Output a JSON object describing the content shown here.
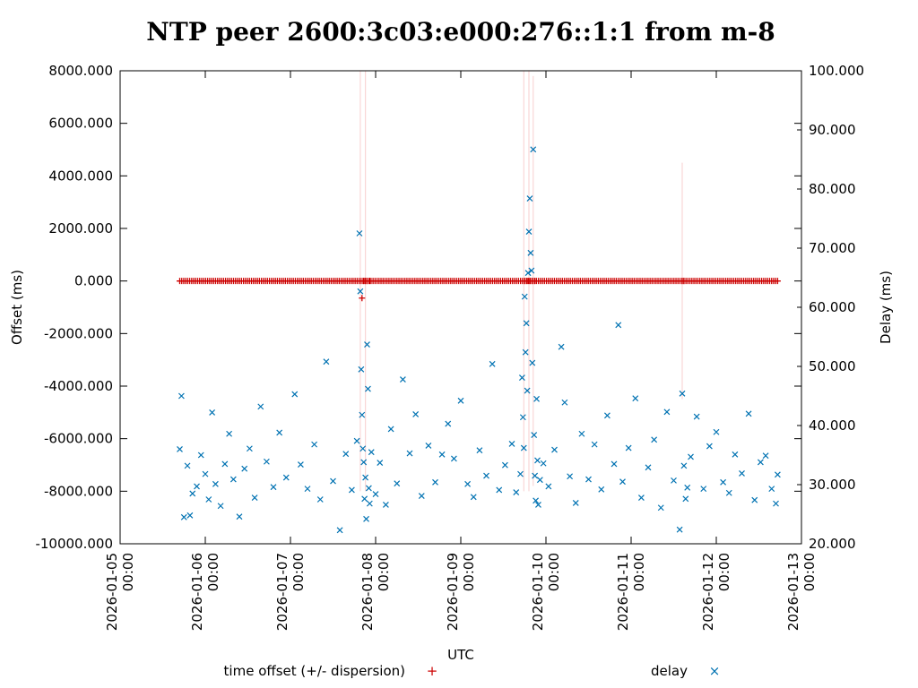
{
  "chart_data": {
    "type": "scatter",
    "title": "NTP peer 2600:3c03:e000:276::1:1 from m-8",
    "xlabel": "UTC",
    "ylabel": "Offset (ms)",
    "y2label": "Delay (ms)",
    "xlim": [
      "2026-01-05 00:00",
      "2026-01-13 00:00"
    ],
    "ylim": [
      -10000,
      8000
    ],
    "y2lim": [
      20,
      100
    ],
    "grid": false,
    "legend_position": "bottom",
    "x_ticks": [
      {
        "date": "2026-01-05",
        "time": "00:00",
        "day": 0
      },
      {
        "date": "2026-01-06",
        "time": "00:00",
        "day": 1
      },
      {
        "date": "2026-01-07",
        "time": "00:00",
        "day": 2
      },
      {
        "date": "2026-01-08",
        "time": "00:00",
        "day": 3
      },
      {
        "date": "2026-01-09",
        "time": "00:00",
        "day": 4
      },
      {
        "date": "2026-01-10",
        "time": "00:00",
        "day": 5
      },
      {
        "date": "2026-01-11",
        "time": "00:00",
        "day": 6
      },
      {
        "date": "2026-01-12",
        "time": "00:00",
        "day": 7
      },
      {
        "date": "2026-01-13",
        "time": "00:00",
        "day": 8
      }
    ],
    "y_ticks": [
      {
        "value": 8000,
        "label": "8000.000"
      },
      {
        "value": 6000,
        "label": "6000.000"
      },
      {
        "value": 4000,
        "label": "4000.000"
      },
      {
        "value": 2000,
        "label": "2000.000"
      },
      {
        "value": 0,
        "label": "0.000"
      },
      {
        "value": -2000,
        "label": "-2000.000"
      },
      {
        "value": -4000,
        "label": "-4000.000"
      },
      {
        "value": -6000,
        "label": "-6000.000"
      },
      {
        "value": -8000,
        "label": "-8000.000"
      },
      {
        "value": -10000,
        "label": "-10000.000"
      }
    ],
    "y2_ticks": [
      {
        "value": 100,
        "label": "100.000"
      },
      {
        "value": 90,
        "label": "90.000"
      },
      {
        "value": 80,
        "label": "80.000"
      },
      {
        "value": 70,
        "label": "70.000"
      },
      {
        "value": 60,
        "label": "60.000"
      },
      {
        "value": 50,
        "label": "50.000"
      },
      {
        "value": 40,
        "label": "40.000"
      },
      {
        "value": 30,
        "label": "30.000"
      },
      {
        "value": 20,
        "label": "20.000"
      }
    ],
    "series": [
      {
        "name": "time offset (+/- dispersion)",
        "axis": "y",
        "marker": "+",
        "color": "#cc0000",
        "x_start_day": 0.7,
        "x_end_day": 7.72,
        "typical_offset_ms": 0,
        "points": [
          {
            "day": 2.84,
            "offset": -650
          },
          {
            "day": 2.86,
            "offset": 0
          },
          {
            "day": 2.88,
            "offset": 0
          },
          {
            "day": 2.9,
            "offset": 0
          },
          {
            "day": 2.93,
            "offset": 0
          },
          {
            "day": 4.75,
            "offset": 0
          },
          {
            "day": 4.78,
            "offset": 0
          },
          {
            "day": 4.81,
            "offset": 0
          },
          {
            "day": 4.84,
            "offset": 0
          },
          {
            "day": 4.87,
            "offset": 0
          },
          {
            "day": 6.6,
            "offset": 0
          },
          {
            "day": 6.62,
            "offset": 0
          }
        ],
        "dispersion_spikes": [
          {
            "day": 2.82,
            "dispersion_ms": 8000
          },
          {
            "day": 2.88,
            "dispersion_ms": 8000
          },
          {
            "day": 4.74,
            "dispersion_ms": 8000
          },
          {
            "day": 4.8,
            "dispersion_ms": 8000
          },
          {
            "day": 4.85,
            "dispersion_ms": 7800
          },
          {
            "day": 6.6,
            "dispersion_ms": 4500
          }
        ]
      },
      {
        "name": "delay",
        "axis": "y2",
        "marker": "x",
        "color": "#0072b2",
        "points": [
          [
            0.7,
            36
          ],
          [
            0.72,
            45
          ],
          [
            0.75,
            24.5
          ],
          [
            0.79,
            33.2
          ],
          [
            0.82,
            24.8
          ],
          [
            0.85,
            28.5
          ],
          [
            0.9,
            29.7
          ],
          [
            0.95,
            35
          ],
          [
            1.0,
            31.8
          ],
          [
            1.04,
            27.5
          ],
          [
            1.08,
            42.2
          ],
          [
            1.12,
            30.1
          ],
          [
            1.18,
            26.4
          ],
          [
            1.23,
            33.5
          ],
          [
            1.28,
            38.6
          ],
          [
            1.33,
            30.9
          ],
          [
            1.4,
            24.6
          ],
          [
            1.46,
            32.7
          ],
          [
            1.52,
            36.1
          ],
          [
            1.58,
            27.8
          ],
          [
            1.65,
            43.2
          ],
          [
            1.72,
            33.9
          ],
          [
            1.8,
            29.6
          ],
          [
            1.87,
            38.8
          ],
          [
            1.95,
            31.2
          ],
          [
            2.05,
            45.3
          ],
          [
            2.12,
            33.4
          ],
          [
            2.2,
            29.3
          ],
          [
            2.28,
            36.8
          ],
          [
            2.35,
            27.5
          ],
          [
            2.42,
            50.8
          ],
          [
            2.5,
            30.6
          ],
          [
            2.58,
            22.3
          ],
          [
            2.65,
            35.2
          ],
          [
            2.72,
            29.1
          ],
          [
            2.78,
            37.4
          ],
          [
            2.81,
            72.5
          ],
          [
            2.82,
            62.7
          ],
          [
            2.83,
            49.5
          ],
          [
            2.84,
            41.8
          ],
          [
            2.85,
            36.1
          ],
          [
            2.86,
            33.8
          ],
          [
            2.87,
            27.6
          ],
          [
            2.88,
            31.2
          ],
          [
            2.89,
            24.2
          ],
          [
            2.9,
            53.7
          ],
          [
            2.91,
            46.2
          ],
          [
            2.92,
            29.4
          ],
          [
            2.93,
            26.8
          ],
          [
            2.95,
            35.5
          ],
          [
            3.0,
            28.4
          ],
          [
            3.05,
            33.7
          ],
          [
            3.12,
            26.6
          ],
          [
            3.18,
            39.4
          ],
          [
            3.25,
            30.2
          ],
          [
            3.32,
            47.8
          ],
          [
            3.4,
            35.3
          ],
          [
            3.47,
            41.9
          ],
          [
            3.54,
            28.1
          ],
          [
            3.62,
            36.6
          ],
          [
            3.7,
            30.4
          ],
          [
            3.78,
            35.1
          ],
          [
            3.85,
            40.3
          ],
          [
            3.92,
            34.4
          ],
          [
            4.0,
            44.2
          ],
          [
            4.08,
            30.1
          ],
          [
            4.15,
            27.9
          ],
          [
            4.22,
            35.8
          ],
          [
            4.3,
            31.5
          ],
          [
            4.37,
            50.4
          ],
          [
            4.45,
            29.1
          ],
          [
            4.52,
            33.3
          ],
          [
            4.6,
            36.9
          ],
          [
            4.65,
            28.7
          ],
          [
            4.7,
            31.8
          ],
          [
            4.72,
            48.1
          ],
          [
            4.73,
            41.4
          ],
          [
            4.74,
            36.2
          ],
          [
            4.75,
            61.8
          ],
          [
            4.76,
            52.4
          ],
          [
            4.77,
            57.3
          ],
          [
            4.78,
            45.9
          ],
          [
            4.79,
            65.8
          ],
          [
            4.8,
            72.8
          ],
          [
            4.81,
            78.4
          ],
          [
            4.82,
            69.2
          ],
          [
            4.83,
            66.2
          ],
          [
            4.84,
            50.6
          ],
          [
            4.85,
            86.7
          ],
          [
            4.86,
            38.4
          ],
          [
            4.87,
            31.5
          ],
          [
            4.88,
            27.3
          ],
          [
            4.89,
            44.5
          ],
          [
            4.9,
            34.1
          ],
          [
            4.91,
            26.6
          ],
          [
            4.93,
            30.8
          ],
          [
            4.97,
            33.6
          ],
          [
            5.03,
            29.7
          ],
          [
            5.1,
            35.9
          ],
          [
            5.18,
            53.3
          ],
          [
            5.22,
            43.9
          ],
          [
            5.28,
            31.4
          ],
          [
            5.35,
            26.9
          ],
          [
            5.42,
            38.6
          ],
          [
            5.5,
            30.9
          ],
          [
            5.57,
            36.8
          ],
          [
            5.65,
            29.2
          ],
          [
            5.72,
            41.7
          ],
          [
            5.8,
            33.5
          ],
          [
            5.85,
            57.0
          ],
          [
            5.9,
            30.5
          ],
          [
            5.97,
            36.2
          ],
          [
            6.05,
            44.6
          ],
          [
            6.12,
            27.8
          ],
          [
            6.2,
            32.9
          ],
          [
            6.27,
            37.6
          ],
          [
            6.35,
            26.1
          ],
          [
            6.42,
            42.3
          ],
          [
            6.5,
            30.7
          ],
          [
            6.57,
            22.4
          ],
          [
            6.6,
            45.4
          ],
          [
            6.62,
            33.2
          ],
          [
            6.64,
            27.6
          ],
          [
            6.66,
            29.5
          ],
          [
            6.7,
            34.7
          ],
          [
            6.77,
            41.5
          ],
          [
            6.85,
            29.3
          ],
          [
            6.92,
            36.5
          ],
          [
            7.0,
            38.9
          ],
          [
            7.08,
            30.4
          ],
          [
            7.15,
            28.6
          ],
          [
            7.22,
            35.1
          ],
          [
            7.3,
            31.9
          ],
          [
            7.38,
            42.0
          ],
          [
            7.45,
            27.4
          ],
          [
            7.52,
            33.8
          ],
          [
            7.58,
            34.9
          ],
          [
            7.65,
            29.3
          ],
          [
            7.7,
            26.8
          ],
          [
            7.72,
            31.7
          ]
        ]
      }
    ]
  },
  "legend": {
    "offset_label": "time offset (+/- dispersion)",
    "offset_symbol": "+",
    "delay_label": "delay",
    "delay_symbol": "×"
  }
}
